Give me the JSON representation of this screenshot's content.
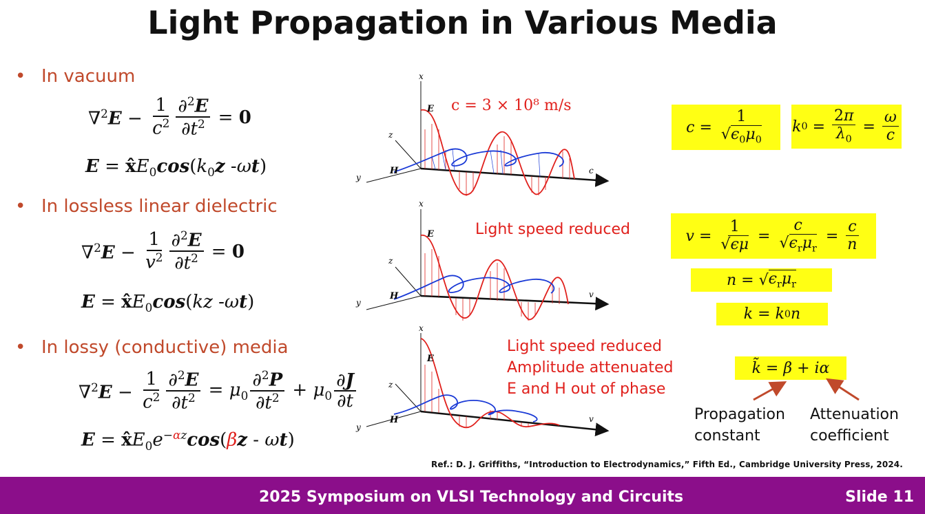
{
  "title": "Light Propagation in Various Media",
  "bullets": [
    {
      "text": "In vacuum"
    },
    {
      "text": "In lossless linear dielectric"
    },
    {
      "text": "In lossy (conductive) media"
    }
  ],
  "wave_labels": {
    "x": "x",
    "E": "E",
    "z": "z",
    "H": "H",
    "y": "y",
    "top_dir": "c",
    "mid_dir": "v",
    "bot_dir": "v"
  },
  "notes": {
    "vacuum_speed": "c = 3 × 10⁸ m/s",
    "dielectric": "Light speed reduced",
    "lossy_line1": "Light speed reduced",
    "lossy_line2": "Amplitude attenuated",
    "lossy_line3": "E and H out of phase"
  },
  "labels": {
    "propagation_line1": "Propagation",
    "propagation_line2": "constant",
    "attenuation_line1": "Attenuation",
    "attenuation_line2": "coefficient"
  },
  "reference": "Ref.: D. J. Griffiths, “Introduction to Electrodynamics,” Fifth Ed., Cambridge University Press, 2024.",
  "footer": {
    "conference": "2025 Symposium on VLSI Technology and Circuits",
    "slide": "Slide 11"
  },
  "colors": {
    "bullet": "#c0492b",
    "highlight": "#ffff14",
    "footer": "#8b0e8a",
    "e_wave": "#e0201c",
    "h_wave": "#1a3ad6"
  }
}
